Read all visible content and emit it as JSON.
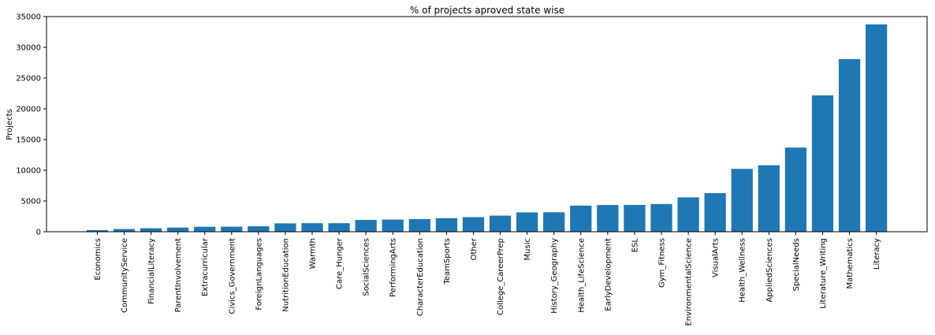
{
  "chart_data": {
    "type": "bar",
    "title": "% of projects aproved state wise",
    "xlabel": "",
    "ylabel": "Projects",
    "ylim": [
      0,
      35000
    ],
    "yticks": [
      0,
      5000,
      10000,
      15000,
      20000,
      25000,
      30000,
      35000
    ],
    "grid": false,
    "bar_color": "#1f77b4",
    "categories": [
      "Economics",
      "CommunityService",
      "FinancialLiteracy",
      "ParentInvolvement",
      "Extracurricular",
      "Civics_Government",
      "ForeignLanguages",
      "NutritionEducation",
      "Warmth",
      "Care_Hunger",
      "SocialSciences",
      "PerformingArts",
      "CharacterEducation",
      "TeamSports",
      "Other",
      "College_CareerPrep",
      "Music",
      "History_Geography",
      "Health_LifeScience",
      "EarlyDevelopment",
      "ESL",
      "Gym_Fitness",
      "EnvironmentalScience",
      "VisualArts",
      "Health_Wellness",
      "AppliedSciences",
      "SpecialNeeds",
      "Literature_Writing",
      "Mathematics",
      "Literacy"
    ],
    "values": [
      270,
      440,
      570,
      680,
      810,
      820,
      890,
      1360,
      1390,
      1390,
      1920,
      1980,
      2060,
      2210,
      2370,
      2620,
      3150,
      3170,
      4250,
      4350,
      4360,
      4510,
      5590,
      6280,
      10230,
      10820,
      13690,
      22180,
      28070,
      33720
    ]
  }
}
